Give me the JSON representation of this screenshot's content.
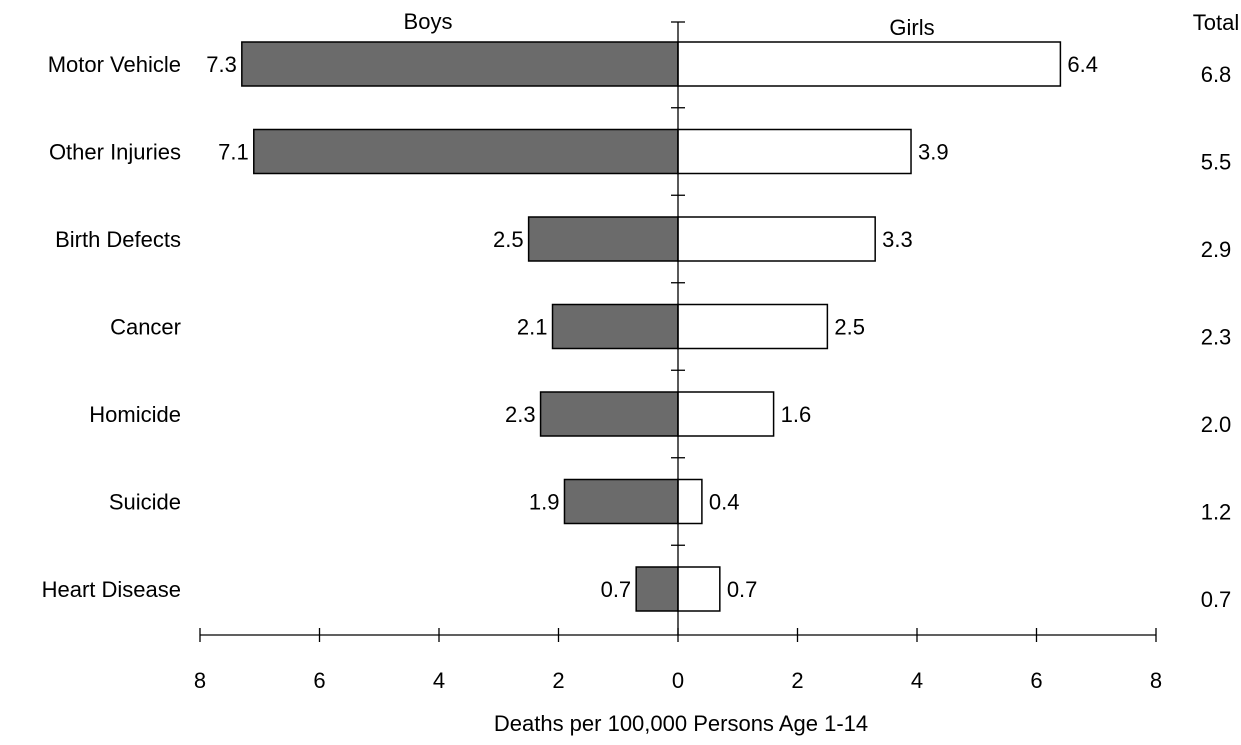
{
  "chart_data": {
    "type": "bar",
    "orientation": "horizontal",
    "layout": "diverging",
    "categories": [
      "Motor Vehicle",
      "Other Injuries",
      "Birth Defects",
      "Cancer",
      "Homicide",
      "Suicide",
      "Heart Disease"
    ],
    "series": [
      {
        "name": "Boys",
        "values": [
          7.3,
          7.1,
          2.5,
          2.1,
          2.3,
          1.9,
          0.7
        ],
        "value_labels": [
          "7.3",
          "7.1",
          "2.5",
          "2.1",
          "2.3",
          "1.9",
          "0.7"
        ],
        "color": "#6b6b6b"
      },
      {
        "name": "Girls",
        "values": [
          6.4,
          3.9,
          3.3,
          2.5,
          1.6,
          0.4,
          0.7
        ],
        "value_labels": [
          "6.4",
          "3.9",
          "3.3",
          "2.5",
          "1.6",
          "0.4",
          "0.7"
        ],
        "color": "#ffffff"
      }
    ],
    "totals": {
      "header": "Total",
      "values": [
        6.8,
        5.5,
        2.9,
        2.3,
        2.0,
        1.2,
        0.7
      ],
      "labels": [
        "6.8",
        "5.5",
        "2.9",
        "2.3",
        "2.0",
        "1.2",
        "0.7"
      ]
    },
    "xlabel": "Deaths per 100,000 Persons Age 1-14",
    "xlim": [
      -8,
      8
    ],
    "xticks": [
      -8,
      -6,
      -4,
      -2,
      0,
      2,
      4,
      6,
      8
    ],
    "xtick_labels": [
      "8",
      "6",
      "4",
      "2",
      "0",
      "2",
      "4",
      "6",
      "8"
    ],
    "grid": false,
    "legend": "none; series names shown as headers above each side"
  }
}
